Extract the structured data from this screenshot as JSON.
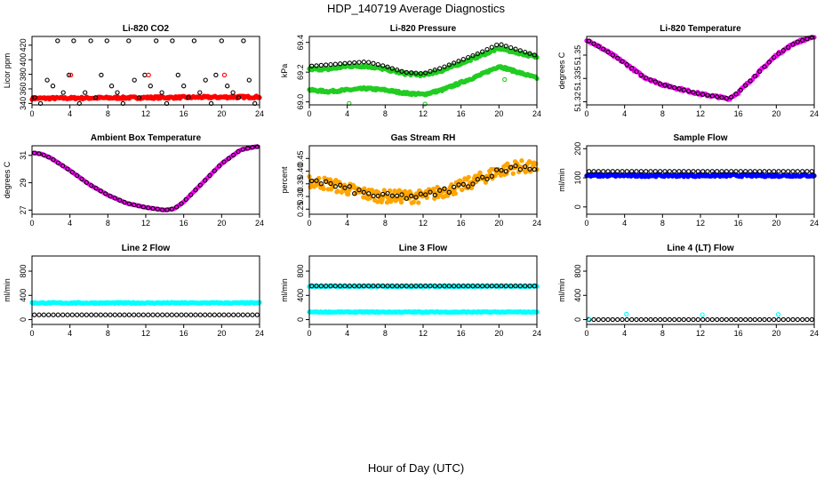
{
  "figure": {
    "title": "HDP_140719  Average Diagnostics",
    "xlabel": "Hour of Day (UTC)"
  },
  "colors": {
    "red": "#ff0000",
    "green": "#22cc22",
    "magenta": "#ff00ff",
    "orange": "#ffa500",
    "blue": "#0000ff",
    "cyan": "#00ffff",
    "black": "#000000"
  },
  "chart_data": [
    {
      "type": "scatter",
      "title": "Li-820 CO2",
      "ylabel": "Licor ppm",
      "xlim": [
        0,
        24
      ],
      "ylim": [
        338,
        432
      ],
      "xticks": [
        0,
        4,
        8,
        12,
        16,
        20,
        24
      ],
      "yticks": [
        340,
        360,
        380,
        400,
        420
      ],
      "series": [
        {
          "color": "red",
          "kind": "band",
          "x": [
            0,
            24
          ],
          "y": [
            347,
            349
          ],
          "noise": 3
        },
        {
          "color": "black",
          "kind": "hollow",
          "x": [
            0.3,
            0.9,
            1.6,
            2.2,
            2.7,
            3.3,
            3.9,
            4.4,
            5.0,
            5.6,
            6.2,
            6.7,
            7.3,
            7.9,
            8.4,
            9.0,
            9.6,
            10.2,
            10.8,
            11.3,
            11.9,
            12.5,
            13.1,
            13.7,
            14.2,
            14.8,
            15.4,
            16.0,
            16.5,
            17.1,
            17.7,
            18.3,
            18.9,
            19.4,
            20.0,
            20.6,
            21.2,
            21.8,
            22.3,
            22.9,
            23.5
          ],
          "y": [
            348,
            340,
            372,
            364,
            426,
            355,
            379,
            426,
            340,
            355,
            426,
            348,
            379,
            426,
            364,
            355,
            340,
            426,
            372,
            348,
            379,
            364,
            426,
            355,
            340,
            426,
            379,
            364,
            348,
            426,
            355,
            372,
            340,
            379,
            426,
            364,
            355,
            348,
            426,
            372,
            340
          ]
        },
        {
          "color": "red",
          "kind": "hollow",
          "x": [
            4.1,
            12.3,
            20.3
          ],
          "y": [
            379,
            379,
            379
          ]
        }
      ]
    },
    {
      "type": "scatter",
      "title": "Li-820 Pressure",
      "ylabel": "kPa",
      "xlim": [
        0,
        24
      ],
      "ylim": [
        68.98,
        69.44
      ],
      "xticks": [
        0,
        4,
        8,
        12,
        16,
        20,
        24
      ],
      "yticks": [
        69.0,
        69.2,
        69.4
      ],
      "ytick_labels": [
        "69.0",
        "69.2",
        "69.4"
      ],
      "series": [
        {
          "color": "green",
          "kind": "band_curve",
          "x": [
            0,
            2,
            4,
            6,
            8,
            10,
            12,
            14,
            16,
            18,
            20,
            22,
            24
          ],
          "y": [
            69.08,
            69.07,
            69.08,
            69.09,
            69.08,
            69.06,
            69.05,
            69.08,
            69.13,
            69.18,
            69.24,
            69.2,
            69.16
          ],
          "noise": 0.015
        },
        {
          "color": "green",
          "kind": "band_curve",
          "x": [
            0,
            2,
            4,
            6,
            8,
            10,
            12,
            14,
            16,
            18,
            20,
            22,
            24
          ],
          "y": [
            69.22,
            69.22,
            69.24,
            69.24,
            69.22,
            69.19,
            69.18,
            69.21,
            69.26,
            69.31,
            69.36,
            69.33,
            69.3
          ],
          "noise": 0.015
        },
        {
          "color": "black",
          "kind": "hollow_curve",
          "x": [
            0,
            2,
            4,
            6,
            8,
            10,
            12,
            14,
            16,
            18,
            20,
            22,
            24
          ],
          "y": [
            69.24,
            69.25,
            69.26,
            69.27,
            69.24,
            69.2,
            69.19,
            69.23,
            69.28,
            69.33,
            69.39,
            69.35,
            69.31
          ]
        },
        {
          "color": "green",
          "kind": "hollow",
          "x": [
            4.2,
            12.2,
            20.6
          ],
          "y": [
            68.99,
            68.98,
            69.15
          ]
        }
      ]
    },
    {
      "type": "scatter",
      "title": "Li-820 Temperature",
      "ylabel": "degrees C",
      "xlim": [
        0,
        24
      ],
      "ylim": [
        51.318,
        51.362
      ],
      "xticks": [
        0,
        4,
        8,
        12,
        16,
        20,
        24
      ],
      "yticks": [
        51.32,
        51.335,
        51.35
      ],
      "ytick_labels": [
        "51.32",
        "51.335",
        "51.35"
      ],
      "series": [
        {
          "color": "magenta",
          "kind": "band_curve",
          "x": [
            0,
            2,
            4,
            6,
            8,
            10,
            12,
            14,
            15,
            16,
            18,
            20,
            22,
            24
          ],
          "y": [
            51.36,
            51.353,
            51.345,
            51.336,
            51.331,
            51.328,
            51.325,
            51.323,
            51.322,
            51.326,
            51.338,
            51.35,
            51.358,
            51.362
          ],
          "noise": 0.0015
        },
        {
          "color": "black",
          "kind": "hollow_curve",
          "x": [
            0,
            2,
            4,
            6,
            8,
            10,
            12,
            14,
            15,
            16,
            18,
            20,
            22,
            24
          ],
          "y": [
            51.36,
            51.353,
            51.345,
            51.336,
            51.331,
            51.328,
            51.325,
            51.323,
            51.322,
            51.326,
            51.338,
            51.35,
            51.358,
            51.362
          ]
        }
      ]
    },
    {
      "type": "scatter",
      "title": "Ambient Box Temperature",
      "ylabel": "degrees C",
      "xlim": [
        0,
        24
      ],
      "ylim": [
        26.7,
        31.7
      ],
      "xticks": [
        0,
        4,
        8,
        12,
        16,
        20,
        24
      ],
      "yticks": [
        27,
        29,
        31
      ],
      "series": [
        {
          "color": "magenta",
          "kind": "filled_curve",
          "x": [
            0,
            1,
            2,
            4,
            6,
            8,
            10,
            12,
            14,
            15,
            16,
            18,
            20,
            22,
            24
          ],
          "y": [
            31.2,
            31.1,
            30.8,
            29.9,
            28.9,
            28.1,
            27.5,
            27.2,
            27.0,
            27.1,
            27.6,
            29.0,
            30.4,
            31.4,
            31.7
          ]
        },
        {
          "color": "black",
          "kind": "hollow_curve",
          "x": [
            0,
            1,
            2,
            4,
            6,
            8,
            10,
            12,
            14,
            15,
            16,
            18,
            20,
            22,
            24
          ],
          "y": [
            31.2,
            31.1,
            30.8,
            29.9,
            28.9,
            28.1,
            27.5,
            27.2,
            27.0,
            27.1,
            27.6,
            29.0,
            30.4,
            31.4,
            31.7
          ]
        }
      ]
    },
    {
      "type": "scatter",
      "title": "Gas Stream RH",
      "ylabel": "percent",
      "xlim": [
        0,
        24
      ],
      "ylim": [
        0.23,
        0.5
      ],
      "xticks": [
        0,
        4,
        8,
        12,
        16,
        20,
        24
      ],
      "yticks": [
        0.25,
        0.3,
        0.35,
        0.4,
        0.45
      ],
      "ytick_labels": [
        "0.25",
        "0.30",
        "0.35",
        "0.40",
        "0.45"
      ],
      "series": [
        {
          "color": "orange",
          "kind": "band_curve",
          "x": [
            0,
            2,
            4,
            6,
            8,
            10,
            12,
            14,
            16,
            18,
            20,
            22,
            24
          ],
          "y": [
            0.36,
            0.35,
            0.33,
            0.31,
            0.3,
            0.3,
            0.3,
            0.32,
            0.34,
            0.37,
            0.4,
            0.42,
            0.41
          ],
          "noise": 0.05
        },
        {
          "color": "black",
          "kind": "hollow_curve",
          "x": [
            0,
            2,
            4,
            6,
            8,
            10,
            12,
            14,
            16,
            18,
            20,
            22,
            24
          ],
          "y": [
            0.37,
            0.35,
            0.33,
            0.31,
            0.3,
            0.3,
            0.3,
            0.32,
            0.34,
            0.37,
            0.4,
            0.42,
            0.41
          ],
          "noise": 0.025
        }
      ]
    },
    {
      "type": "scatter",
      "title": "Sample Flow",
      "ylabel": "ml/min",
      "xlim": [
        0,
        24
      ],
      "ylim": [
        -25,
        210
      ],
      "xticks": [
        0,
        4,
        8,
        12,
        16,
        20,
        24
      ],
      "yticks": [
        0,
        100,
        200
      ],
      "series": [
        {
          "color": "blue",
          "kind": "band",
          "x": [
            0,
            24
          ],
          "y": [
            108,
            108
          ],
          "noise": 8
        },
        {
          "color": "black",
          "kind": "hollow",
          "x": [
            0,
            24
          ],
          "y": [
            122,
            122
          ],
          "count": 48
        }
      ]
    },
    {
      "type": "scatter",
      "title": "Line 2 Flow",
      "ylabel": "ml/min",
      "xlim": [
        0,
        24
      ],
      "ylim": [
        -80,
        1050
      ],
      "xticks": [
        0,
        4,
        8,
        12,
        16,
        20,
        24
      ],
      "yticks": [
        0,
        400,
        800
      ],
      "series": [
        {
          "color": "cyan",
          "kind": "band",
          "x": [
            0,
            24
          ],
          "y": [
            275,
            275
          ],
          "noise": 20
        },
        {
          "color": "black",
          "kind": "hollow",
          "x": [
            0,
            24
          ],
          "y": [
            78,
            78
          ],
          "count": 48
        }
      ]
    },
    {
      "type": "scatter",
      "title": "Line 3 Flow",
      "ylabel": "ml/min",
      "xlim": [
        0,
        24
      ],
      "ylim": [
        -80,
        1050
      ],
      "xticks": [
        0,
        4,
        8,
        12,
        16,
        20,
        24
      ],
      "yticks": [
        0,
        400,
        800
      ],
      "series": [
        {
          "color": "cyan",
          "kind": "band",
          "x": [
            0,
            24
          ],
          "y": [
            125,
            125
          ],
          "noise": 14
        },
        {
          "color": "cyan",
          "kind": "band",
          "x": [
            0,
            24
          ],
          "y": [
            550,
            550
          ],
          "noise": 14
        },
        {
          "color": "black",
          "kind": "hollow",
          "x": [
            0,
            24
          ],
          "y": [
            555,
            555
          ],
          "count": 48
        }
      ]
    },
    {
      "type": "scatter",
      "title": "Line 4 (LT) Flow",
      "ylabel": "ml/min",
      "xlim": [
        0,
        24
      ],
      "ylim": [
        -80,
        1050
      ],
      "xticks": [
        0,
        4,
        8,
        12,
        16,
        20,
        24
      ],
      "yticks": [
        0,
        400,
        800
      ],
      "series": [
        {
          "color": "black",
          "kind": "hollow",
          "x": [
            0,
            24
          ],
          "y": [
            0,
            0
          ],
          "count": 48
        },
        {
          "color": "cyan",
          "kind": "hollow",
          "x": [
            0.2,
            4.2,
            12.2,
            20.2
          ],
          "y": [
            10,
            90,
            80,
            85
          ]
        }
      ]
    }
  ]
}
